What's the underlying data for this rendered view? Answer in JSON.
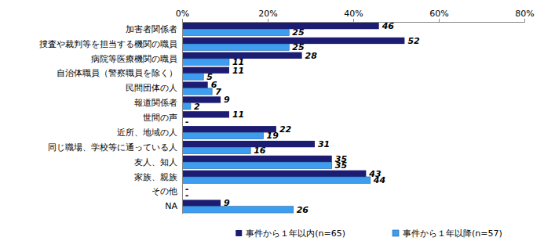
{
  "chart_data": {
    "type": "bar",
    "orientation": "horizontal",
    "categories": [
      "加害者関係者",
      "捜査や裁判等を担当する機関の職員",
      "病院等医療機関の職員",
      "自治体職員（警察職員を除く）",
      "民間団体の人",
      "報道関係者",
      "世間の声",
      "近所、地域の人",
      "同じ職場、学校等に通っている人",
      "友人、知人",
      "家族、親族",
      "その他",
      "NA"
    ],
    "series": [
      {
        "name": "事件から１年以内(n=65)",
        "color": "#1c1c72",
        "values": [
          46,
          52,
          28,
          11,
          6,
          9,
          11,
          22,
          31,
          35,
          43,
          0,
          9
        ],
        "value_labels": [
          "46",
          "52",
          "28",
          "11",
          "6",
          "9",
          "11",
          "22",
          "31",
          "35",
          "43",
          "-",
          "9"
        ]
      },
      {
        "name": "事件から１年以降(n=57)",
        "color": "#3d9ef0",
        "values": [
          25,
          25,
          11,
          5,
          7,
          2,
          0,
          19,
          16,
          35,
          44,
          0,
          26
        ],
        "value_labels": [
          "25",
          "25",
          "11",
          "5",
          "7",
          "2",
          "-",
          "19",
          "16",
          "35",
          "44",
          "-",
          "26"
        ]
      }
    ],
    "xlim": [
      0,
      80
    ],
    "xticks": [
      {
        "value": 0,
        "label": "0%"
      },
      {
        "value": 20,
        "label": "20%"
      },
      {
        "value": 40,
        "label": "40%"
      },
      {
        "value": 60,
        "label": "60%"
      },
      {
        "value": 80,
        "label": "80%"
      }
    ],
    "grid": false,
    "data_labels": true,
    "legend": "bottom"
  }
}
